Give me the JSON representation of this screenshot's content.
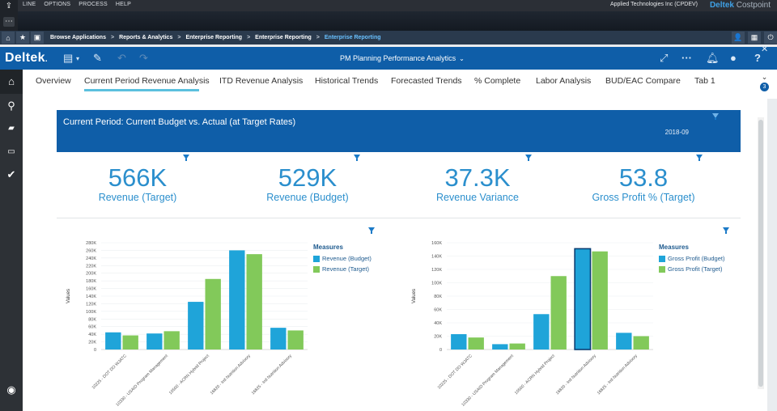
{
  "topbar": {
    "menu": [
      "LINE",
      "OPTIONS",
      "PROCESS",
      "HELP"
    ],
    "company": "Applied Technologies Inc (CPDEV)",
    "brand_main": "Deltek",
    "brand_sub": "Costpoint"
  },
  "breadcrumbs": [
    "Browse Applications",
    "Reports & Analytics",
    "Enterprise Reporting",
    "Enterprise Reporting",
    "Enterprise Reporting"
  ],
  "header": {
    "logo": "Deltek",
    "title": "PM Planning Performance Analytics"
  },
  "tabs": [
    "Overview",
    "Current Period Revenue Analysis",
    "ITD Revenue Analysis",
    "Historical Trends",
    "Forecasted Trends",
    "% Complete",
    "Labor Analysis",
    "BUD/EAC Compare",
    "Tab 1"
  ],
  "tabs_more_count": "3",
  "banner": {
    "title": "Current Period:  Current Budget vs. Actual (at Target Rates)",
    "period": "2018-09"
  },
  "kpis": [
    {
      "value": "566K",
      "label": "Revenue (Target)"
    },
    {
      "value": "529K",
      "label": "Revenue (Budget)"
    },
    {
      "value": "37.3K",
      "label": "Revenue Variance"
    },
    {
      "value": "53.8",
      "label": "Gross Profit % (Target)"
    }
  ],
  "colors": {
    "primary": "#0f5ea8",
    "kpi": "#2b8fcd",
    "series_budget": "#1fa4d9",
    "series_target": "#82c95a"
  },
  "chart_data": [
    {
      "type": "bar",
      "categories": [
        "10225 - DOT DO WJATC",
        "10330 - USAID Program Management",
        "10500 - ACRN Hybrid Project",
        "16820 - Intl Nutrition Advisory",
        "16825 - Intl Nutrition Advisory"
      ],
      "series": [
        {
          "name": "Revenue (Budget)",
          "values": [
            45000,
            42000,
            125000,
            260000,
            57000
          ]
        },
        {
          "name": "Revenue (Target)",
          "values": [
            37000,
            48000,
            185000,
            250000,
            50000
          ]
        }
      ],
      "legend_title": "Measures",
      "ylabel": "Values",
      "yticks": [
        "0",
        "20K",
        "40K",
        "60K",
        "80K",
        "100K",
        "120K",
        "140K",
        "160K",
        "180K",
        "200K",
        "220K",
        "240K",
        "260K",
        "280K"
      ],
      "ylim": [
        0,
        280000
      ]
    },
    {
      "type": "bar",
      "categories": [
        "10225 - DOT DO WJATC",
        "10330 - USAID Program Management",
        "10500 - ACRN Hybrid Project",
        "16820 - Intl Nutrition Advisory",
        "16825 - Intl Nutrition Advisory"
      ],
      "series": [
        {
          "name": "Gross Profit (Budget)",
          "values": [
            23000,
            8000,
            53000,
            151000,
            25000
          ]
        },
        {
          "name": "Gross Profit (Target)",
          "values": [
            18000,
            9000,
            110000,
            147000,
            20000
          ]
        }
      ],
      "legend_title": "Measures",
      "ylabel": "Values",
      "yticks": [
        "0",
        "20K",
        "40K",
        "60K",
        "80K",
        "100K",
        "120K",
        "140K",
        "160K"
      ],
      "ylim": [
        0,
        160000
      ]
    }
  ]
}
